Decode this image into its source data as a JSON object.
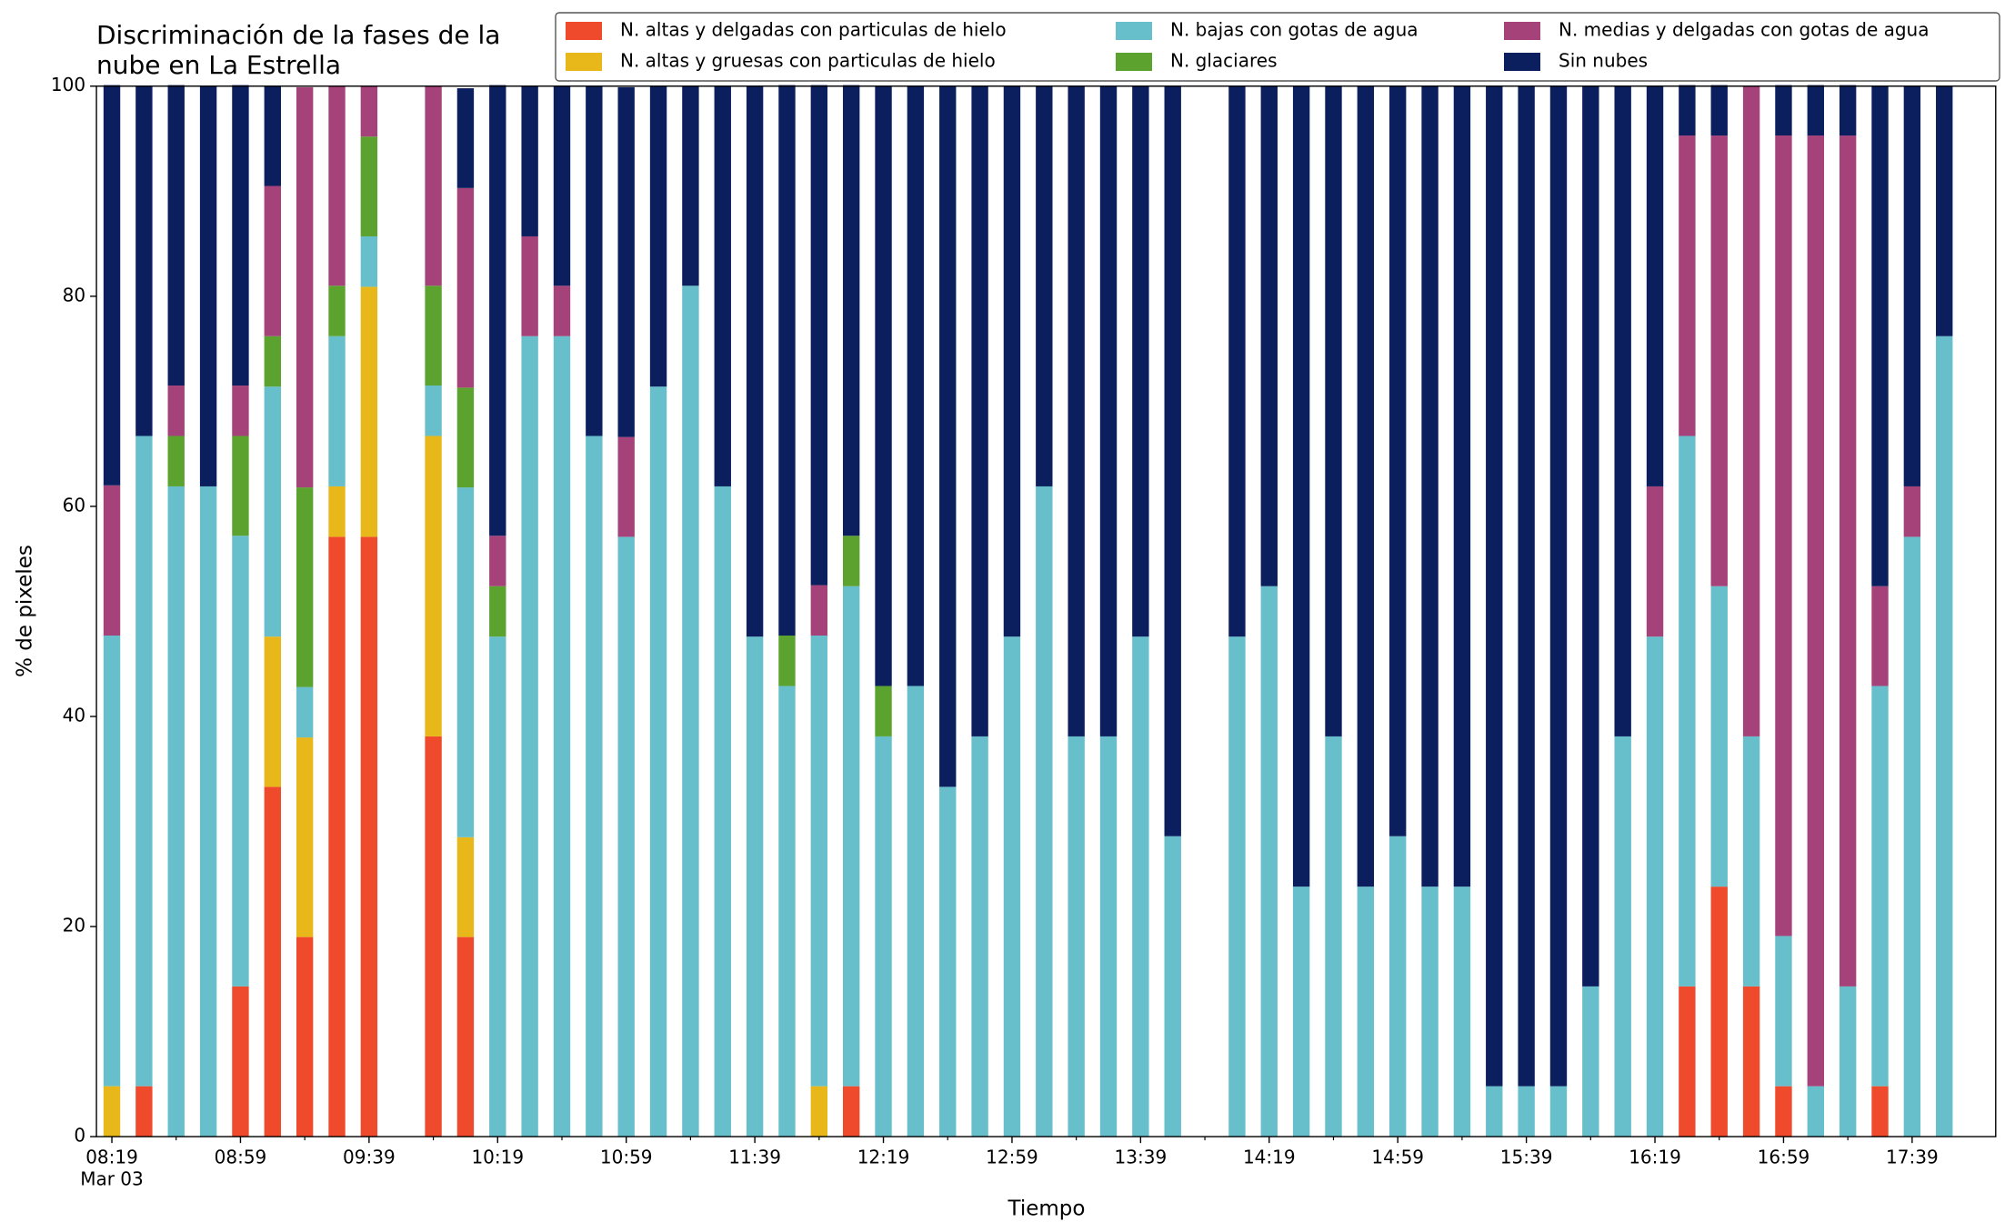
{
  "chart_data": {
    "type": "stacked_bar",
    "title": "Discriminación de la fases de la\nnube en La Estrella",
    "xlabel": "Tiempo",
    "ylabel": "% de pixeles",
    "date_label": "Mar 03",
    "categories": [
      "08:19",
      null,
      null,
      null,
      "08:59",
      null,
      null,
      null,
      "09:39",
      null,
      null,
      null,
      "10:19",
      null,
      null,
      null,
      "10:59",
      null,
      null,
      null,
      "11:39",
      null,
      null,
      null,
      "12:19",
      null,
      null,
      null,
      "12:59",
      null,
      null,
      null,
      "13:39",
      null,
      null,
      null,
      "14:19",
      null,
      null,
      null,
      "14:59",
      null,
      null,
      null,
      "15:39",
      null,
      null,
      null,
      "16:19",
      null,
      null,
      null,
      "16:59",
      null,
      null,
      null,
      "17:39",
      null
    ],
    "ylim": [
      0,
      100
    ],
    "yticks": [
      0,
      20,
      40,
      60,
      80,
      100
    ],
    "legend": "top-right",
    "series": [
      {
        "name": "N. altas y delgadas con particulas de hielo",
        "color": "#ee4a2b",
        "values": [
          0,
          4.8,
          0,
          0,
          14.3,
          33.3,
          19.0,
          57.1,
          57.1,
          null,
          38.1,
          19.0,
          0,
          0,
          0,
          0,
          0,
          0,
          0,
          0,
          0,
          0,
          0,
          4.8,
          0,
          0,
          0,
          0,
          0,
          0,
          0,
          0,
          0,
          0,
          null,
          0,
          0,
          0,
          0,
          0,
          0,
          0,
          0,
          0,
          0,
          0,
          0,
          0,
          0,
          14.3,
          23.8,
          14.3,
          4.8,
          0,
          0,
          4.8,
          0,
          0
        ]
      },
      {
        "name": "N. altas y gruesas con particulas de hielo",
        "color": "#e8b71a",
        "values": [
          4.8,
          0,
          0,
          0,
          0,
          14.3,
          19.0,
          4.8,
          23.8,
          null,
          28.6,
          9.5,
          0,
          0,
          0,
          0,
          0,
          0,
          0,
          0,
          0,
          0,
          4.8,
          0,
          0,
          0,
          0,
          0,
          0,
          0,
          0,
          0,
          0,
          0,
          null,
          0,
          0,
          0,
          0,
          0,
          0,
          0,
          0,
          0,
          0,
          0,
          0,
          0,
          0,
          0,
          0,
          0,
          0,
          0,
          0,
          0,
          0,
          0
        ]
      },
      {
        "name": "N. bajas con gotas de agua",
        "color": "#67bfcb",
        "values": [
          42.9,
          61.9,
          61.9,
          61.9,
          42.9,
          23.8,
          4.8,
          14.3,
          4.8,
          null,
          4.8,
          33.3,
          47.6,
          76.2,
          76.2,
          66.7,
          57.1,
          71.4,
          81.0,
          61.9,
          47.6,
          42.9,
          42.9,
          47.6,
          38.1,
          42.9,
          33.3,
          38.1,
          47.6,
          61.9,
          38.1,
          38.1,
          47.6,
          28.6,
          null,
          47.6,
          52.4,
          23.8,
          38.1,
          23.8,
          28.6,
          23.8,
          23.8,
          4.8,
          4.8,
          4.8,
          14.3,
          38.1,
          47.6,
          52.4,
          28.6,
          23.8,
          14.3,
          4.8,
          14.3,
          38.1,
          57.1,
          76.2
        ]
      },
      {
        "name": "N. glaciares",
        "color": "#5ba22f",
        "values": [
          0,
          0,
          4.8,
          0,
          9.5,
          4.8,
          19.0,
          4.8,
          9.5,
          null,
          9.5,
          9.5,
          4.8,
          0,
          0,
          0,
          0,
          0,
          0,
          0,
          0,
          4.8,
          0,
          4.8,
          4.8,
          0,
          0,
          0,
          0,
          0,
          0,
          0,
          0,
          0,
          null,
          0,
          0,
          0,
          0,
          0,
          0,
          0,
          0,
          0,
          0,
          0,
          0,
          0,
          0,
          0,
          0,
          0,
          0,
          0,
          0,
          0,
          0,
          0
        ]
      },
      {
        "name": "N. medias y delgadas con gotas de agua",
        "color": "#a5427a",
        "values": [
          14.3,
          0,
          4.8,
          0,
          4.8,
          14.3,
          38.1,
          19.0,
          4.8,
          null,
          19.0,
          19.0,
          4.8,
          9.5,
          4.8,
          0,
          9.5,
          0,
          0,
          0,
          0,
          0,
          4.8,
          0,
          0,
          0,
          0,
          0,
          0,
          0,
          0,
          0,
          0,
          0,
          null,
          0,
          0,
          0,
          0,
          0,
          0,
          0,
          0,
          0,
          0,
          0,
          0,
          0,
          14.3,
          28.6,
          42.9,
          61.9,
          76.2,
          90.5,
          81.0,
          9.5,
          4.8,
          0
        ]
      },
      {
        "name": "Sin nubes",
        "color": "#0b1f5e",
        "values": [
          38.1,
          33.3,
          28.6,
          38.1,
          28.6,
          9.5,
          0,
          0,
          0,
          null,
          0,
          9.5,
          42.9,
          14.3,
          19.0,
          33.3,
          33.3,
          28.6,
          19.0,
          38.1,
          52.4,
          52.4,
          47.6,
          42.9,
          57.1,
          57.1,
          66.7,
          61.9,
          52.4,
          38.1,
          61.9,
          61.9,
          52.4,
          71.4,
          null,
          52.4,
          47.6,
          76.2,
          61.9,
          76.2,
          71.4,
          76.2,
          76.2,
          95.2,
          95.2,
          95.2,
          85.7,
          61.9,
          38.1,
          4.8,
          4.8,
          0,
          4.8,
          4.8,
          4.8,
          47.6,
          38.1,
          23.8
        ]
      }
    ]
  }
}
